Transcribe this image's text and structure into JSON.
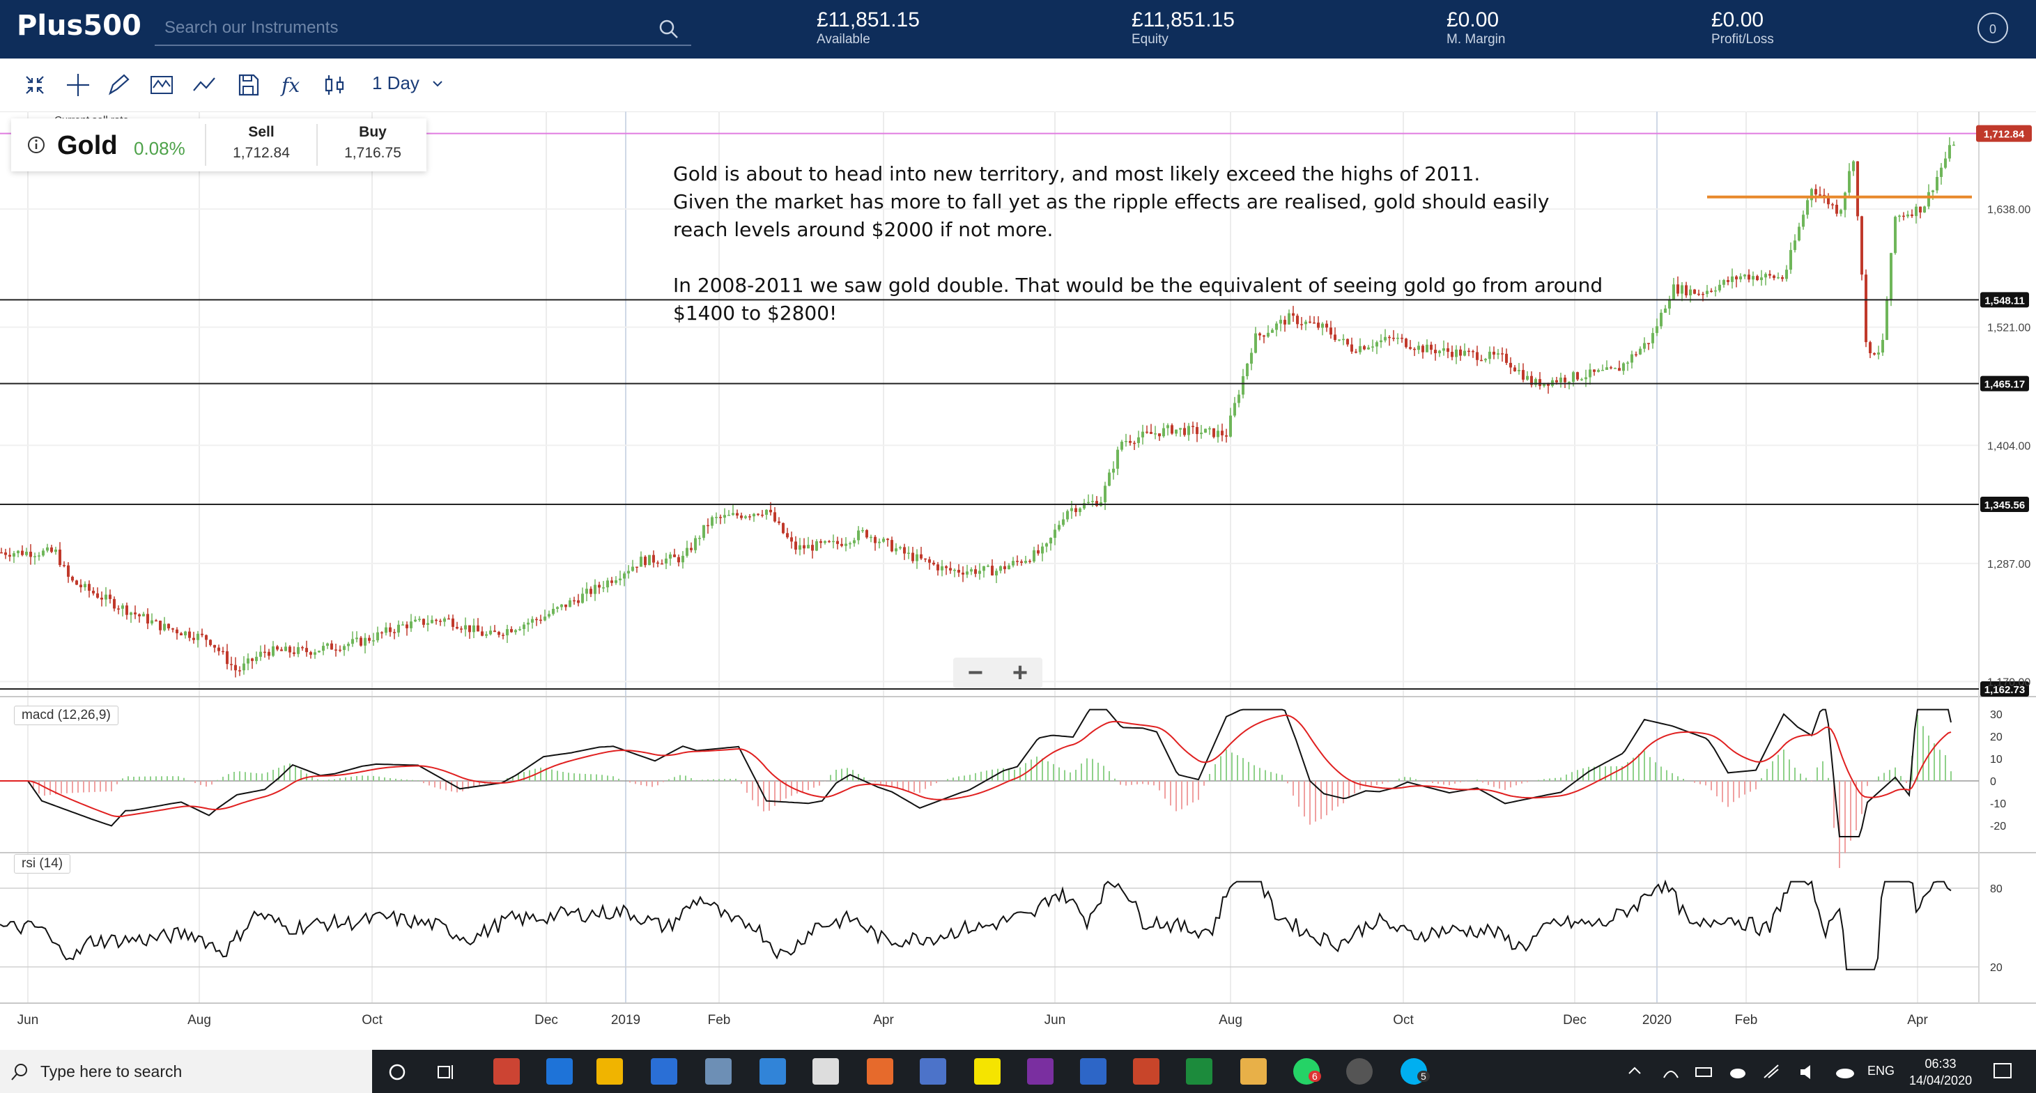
{
  "app": {
    "logo": "Plus500"
  },
  "search": {
    "placeholder": "Search our Instruments"
  },
  "stats": [
    {
      "value": "£11,851.15",
      "label": "Available"
    },
    {
      "value": "£11,851.15",
      "label": "Equity"
    },
    {
      "value": "£0.00",
      "label": "M. Margin"
    },
    {
      "value": "£0.00",
      "label": "Profit/Loss"
    }
  ],
  "account": {
    "badge": "0"
  },
  "toolbar": {
    "timeframe": "1 Day"
  },
  "instrument": {
    "caption": "Current sell rate",
    "name": "Gold",
    "change": "0.08%",
    "sell_label": "Sell",
    "sell_price": "1,712.84",
    "buy_label": "Buy",
    "buy_price": "1,716.75"
  },
  "note": {
    "p1": "Gold is about to head into new territory, and most likely exceed the highs of 2011.",
    "p2": "Given the market has more to fall yet as the ripple effects are realised, gold should easily reach levels around $2000 if not more.",
    "p3": "In 2008-2011 we saw gold double.  That would be the equivalent of seeing gold go from around $1400 to $2800!"
  },
  "price_axis": {
    "ticks": [
      "1,638.00",
      "1,521.00",
      "1,404.00",
      "1,287.00",
      "1,170.00"
    ],
    "current_label": "1,712.84",
    "hline_labels": [
      "1,548.11",
      "1,465.17",
      "1,345.56",
      "1,162.73"
    ]
  },
  "macd": {
    "label": "macd (12,26,9)",
    "ticks": [
      "30",
      "20",
      "10",
      "0",
      "-10",
      "-20"
    ]
  },
  "rsi": {
    "label": "rsi (14)",
    "ticks": [
      "80",
      "20"
    ]
  },
  "time_axis": [
    "Jun",
    "Aug",
    "Oct",
    "Dec",
    "2019",
    "Feb",
    "Apr",
    "Jun",
    "Aug",
    "Oct",
    "Dec",
    "2020",
    "Feb",
    "Apr"
  ],
  "chart_data": {
    "type": "line",
    "title": "Gold",
    "xlabel": "",
    "ylabel": "",
    "x": [
      "2018-06",
      "2018-07",
      "2018-08",
      "2018-09",
      "2018-10",
      "2018-11",
      "2018-12",
      "2019-01",
      "2019-02",
      "2019-03",
      "2019-04",
      "2019-05",
      "2019-06",
      "2019-07",
      "2019-08",
      "2019-09",
      "2019-10",
      "2019-11",
      "2019-12",
      "2020-01",
      "2020-02",
      "2020-03",
      "2020-04"
    ],
    "series": [
      {
        "values": [
          1300,
          1260,
          1215,
          1195,
          1220,
          1225,
          1250,
          1290,
          1330,
          1305,
          1280,
          1275,
          1390,
          1420,
          1500,
          1520,
          1500,
          1470,
          1475,
          1560,
          1600,
          1600,
          1712
        ]
      }
    ],
    "horizontal_levels": [
      1548.11,
      1465.17,
      1345.56,
      1162.73,
      1650
    ],
    "current_price": 1712.84,
    "ylim": [
      1162,
      1725
    ],
    "grid": true
  },
  "taskbar": {
    "search_placeholder": "Type here to search",
    "lang": "ENG",
    "time": "06:33",
    "date": "14/04/2020",
    "badge_whatsapp": "6",
    "badge_skype": "5"
  }
}
